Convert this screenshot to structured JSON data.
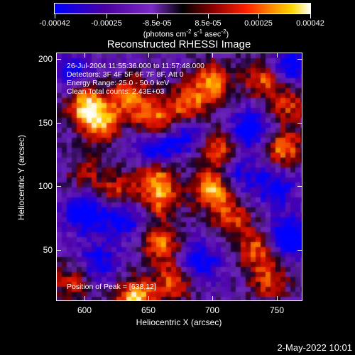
{
  "colorbar": {
    "tick_labels": [
      "-0.00042",
      "-0.00025",
      "-8.5e-05",
      "8.5e-05",
      "0.00025",
      "0.00042"
    ],
    "tick_values": [
      -0.00042,
      -0.00025,
      -8.5e-05,
      8.5e-05,
      0.00025,
      0.00042
    ],
    "range": [
      -0.00042,
      0.00042
    ],
    "units_main": "(photons cm",
    "units_exp1": "-2",
    "units_mid1": " s",
    "units_exp2": "-1",
    "units_mid2": " asec",
    "units_exp3": "-2",
    "units_end": ")",
    "colors": [
      "#0000ff",
      "#4b0082",
      "#8a2be2",
      "#000000",
      "#8b0000",
      "#ff0000",
      "#ff8c00",
      "#ffd700",
      "#ffffff"
    ]
  },
  "chart_data": {
    "type": "heatmap",
    "title": "Reconstructed RHESSI Image",
    "xlabel": "Heliocentric X (arcsec)",
    "ylabel": "Heliocentric Y (arcsec)",
    "xlim": [
      578,
      770
    ],
    "ylim": [
      10,
      205
    ],
    "x_ticks": [
      600,
      650,
      700,
      750
    ],
    "x_tick_labels": [
      "600",
      "650",
      "700",
      "750"
    ],
    "y_ticks": [
      50,
      100,
      150,
      200
    ],
    "y_tick_labels": [
      "50",
      "100",
      "150",
      "200"
    ],
    "annotations": [
      "26-Jul-2004 11:55:36.000 to 11:57:48.000",
      "Detectors: 3F 4F 5F 6F 7F 8F, Att 0",
      "Energy Range: 25.0 - 50.0 keV",
      "Clean     Total counts: 2.43E+03"
    ],
    "peak_label": "Position of Peak = [638,12]",
    "peak_position": [
      638,
      12
    ],
    "hot_spots": [
      {
        "x": 640,
        "y": 12,
        "v": 1.0
      },
      {
        "x": 600,
        "y": 165,
        "v": 0.9
      },
      {
        "x": 612,
        "y": 150,
        "v": 0.85
      },
      {
        "x": 635,
        "y": 172,
        "v": 0.8
      },
      {
        "x": 655,
        "y": 150,
        "v": 0.85
      },
      {
        "x": 680,
        "y": 165,
        "v": 0.75
      },
      {
        "x": 700,
        "y": 182,
        "v": 0.8
      },
      {
        "x": 740,
        "y": 185,
        "v": 0.7
      },
      {
        "x": 760,
        "y": 165,
        "v": 0.6
      },
      {
        "x": 705,
        "y": 130,
        "v": 0.75
      },
      {
        "x": 755,
        "y": 130,
        "v": 0.8
      },
      {
        "x": 655,
        "y": 110,
        "v": 0.75
      },
      {
        "x": 700,
        "y": 98,
        "v": 0.95
      },
      {
        "x": 660,
        "y": 90,
        "v": 0.7
      },
      {
        "x": 625,
        "y": 95,
        "v": 0.6
      },
      {
        "x": 660,
        "y": 55,
        "v": 0.75
      },
      {
        "x": 715,
        "y": 75,
        "v": 0.6
      },
      {
        "x": 735,
        "y": 50,
        "v": 0.7
      },
      {
        "x": 745,
        "y": 25,
        "v": 0.6
      },
      {
        "x": 670,
        "y": 25,
        "v": 0.65
      },
      {
        "x": 590,
        "y": 25,
        "v": 0.55
      },
      {
        "x": 600,
        "y": 110,
        "v": 0.45
      }
    ],
    "cold_spots": [
      {
        "x": 655,
        "y": 130,
        "v": -0.9
      },
      {
        "x": 730,
        "y": 145,
        "v": -0.8
      },
      {
        "x": 760,
        "y": 195,
        "v": -0.7
      },
      {
        "x": 600,
        "y": 80,
        "v": -0.8
      },
      {
        "x": 630,
        "y": 75,
        "v": -0.7
      },
      {
        "x": 760,
        "y": 60,
        "v": -0.9
      },
      {
        "x": 690,
        "y": 40,
        "v": -0.7
      },
      {
        "x": 610,
        "y": 40,
        "v": -0.6
      },
      {
        "x": 720,
        "y": 110,
        "v": -0.5
      },
      {
        "x": 590,
        "y": 190,
        "v": -0.5
      },
      {
        "x": 680,
        "y": 140,
        "v": -0.5
      },
      {
        "x": 750,
        "y": 100,
        "v": -0.6
      }
    ]
  },
  "footer": {
    "timestamp": "2-May-2022 10:01"
  }
}
